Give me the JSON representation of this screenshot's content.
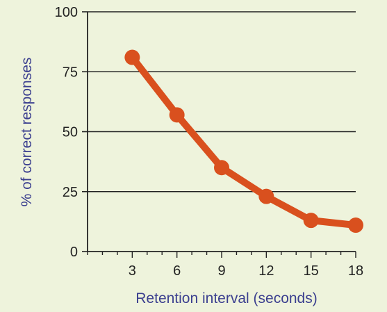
{
  "chart_data": {
    "type": "line",
    "title": "",
    "xlabel": "Retention interval (seconds)",
    "ylabel": "% of correct responses",
    "x": [
      3,
      6,
      9,
      12,
      15,
      18
    ],
    "series": [
      {
        "values": [
          81,
          57,
          35,
          23,
          13,
          11
        ]
      }
    ],
    "xticks": [
      "3",
      "6",
      "9",
      "12",
      "15",
      "18"
    ],
    "yticks": [
      "0",
      "25",
      "50",
      "75",
      "100"
    ],
    "ytick_values": [
      0,
      25,
      50,
      75,
      100
    ],
    "xlim": [
      0,
      18
    ],
    "ylim": [
      0,
      100
    ],
    "grid": "horizontal",
    "colors": {
      "line": "#d9501e",
      "axis_label": "#3b3f8f",
      "background": "#eef3dc",
      "grid": "#222222"
    }
  }
}
